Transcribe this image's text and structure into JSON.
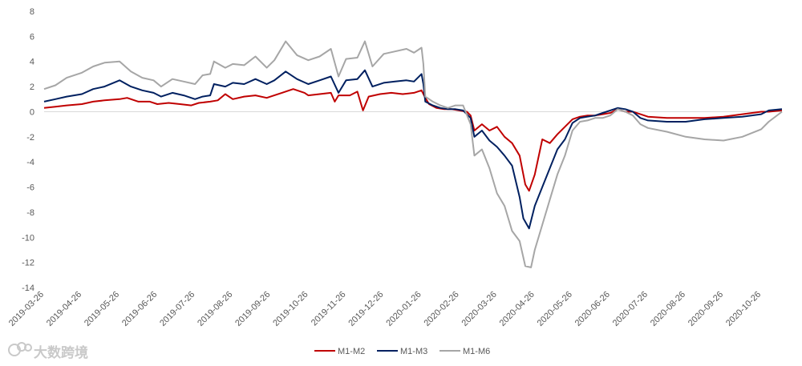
{
  "chart_data": {
    "type": "line",
    "title": "",
    "xlabel": "",
    "ylabel": "",
    "ylim": [
      -14,
      8
    ],
    "yticks": [
      8,
      6,
      4,
      2,
      0,
      -2,
      -4,
      -6,
      -8,
      -10,
      -12,
      -14
    ],
    "x_tick_labels": [
      "2019-03-26",
      "2019-04-26",
      "2019-05-26",
      "2019-06-26",
      "2019-07-26",
      "2019-08-26",
      "2019-09-26",
      "2019-10-26",
      "2019-11-26",
      "2019-12-26",
      "2020-01-26",
      "2020-02-26",
      "2020-03-26",
      "2020-04-26",
      "2020-05-26",
      "2020-06-26",
      "2020-07-26",
      "2020-08-26",
      "2020-09-26",
      "2020-10-26"
    ],
    "x_range": [
      0,
      19.55
    ],
    "grid": false,
    "legend_position": "bottom-center",
    "series": [
      {
        "name": "M1-M2",
        "color": "#c00000",
        "points": [
          [
            0,
            0.3
          ],
          [
            0.3,
            0.4
          ],
          [
            0.6,
            0.5
          ],
          [
            1,
            0.6
          ],
          [
            1.3,
            0.8
          ],
          [
            1.6,
            0.9
          ],
          [
            2,
            1.0
          ],
          [
            2.2,
            1.1
          ],
          [
            2.5,
            0.8
          ],
          [
            2.8,
            0.8
          ],
          [
            3,
            0.6
          ],
          [
            3.3,
            0.7
          ],
          [
            3.6,
            0.6
          ],
          [
            3.9,
            0.5
          ],
          [
            4.1,
            0.7
          ],
          [
            4.4,
            0.8
          ],
          [
            4.6,
            0.9
          ],
          [
            4.8,
            1.4
          ],
          [
            5,
            1.0
          ],
          [
            5.3,
            1.2
          ],
          [
            5.6,
            1.3
          ],
          [
            5.9,
            1.1
          ],
          [
            6,
            1.2
          ],
          [
            6.3,
            1.5
          ],
          [
            6.6,
            1.8
          ],
          [
            6.9,
            1.5
          ],
          [
            7,
            1.3
          ],
          [
            7.3,
            1.4
          ],
          [
            7.6,
            1.5
          ],
          [
            7.7,
            0.8
          ],
          [
            7.8,
            1.3
          ],
          [
            8.1,
            1.3
          ],
          [
            8.3,
            1.6
          ],
          [
            8.45,
            0.1
          ],
          [
            8.6,
            1.2
          ],
          [
            8.9,
            1.4
          ],
          [
            9.2,
            1.5
          ],
          [
            9.5,
            1.4
          ],
          [
            9.8,
            1.5
          ],
          [
            10,
            1.7
          ],
          [
            10.1,
            1.1
          ],
          [
            10.2,
            0.6
          ],
          [
            10.4,
            0.3
          ],
          [
            10.6,
            0.2
          ],
          [
            10.8,
            0.2
          ],
          [
            11,
            0.1
          ],
          [
            11.2,
            0.0
          ],
          [
            11.3,
            -0.3
          ],
          [
            11.4,
            -1.5
          ],
          [
            11.6,
            -1.0
          ],
          [
            11.8,
            -1.5
          ],
          [
            12,
            -1.2
          ],
          [
            12.2,
            -2.0
          ],
          [
            12.4,
            -2.5
          ],
          [
            12.6,
            -3.5
          ],
          [
            12.75,
            -5.8
          ],
          [
            12.85,
            -6.3
          ],
          [
            13,
            -5.0
          ],
          [
            13.2,
            -2.2
          ],
          [
            13.4,
            -2.5
          ],
          [
            13.6,
            -1.8
          ],
          [
            13.8,
            -1.2
          ],
          [
            14,
            -0.6
          ],
          [
            14.2,
            -0.4
          ],
          [
            14.4,
            -0.3
          ],
          [
            14.6,
            -0.3
          ],
          [
            14.8,
            -0.2
          ],
          [
            15,
            -0.1
          ],
          [
            15.2,
            0.2
          ],
          [
            15.4,
            0.0
          ],
          [
            15.6,
            0.0
          ],
          [
            15.8,
            -0.2
          ],
          [
            16,
            -0.4
          ],
          [
            16.5,
            -0.5
          ],
          [
            17,
            -0.5
          ],
          [
            17.5,
            -0.5
          ],
          [
            18,
            -0.4
          ],
          [
            18.5,
            -0.2
          ],
          [
            19,
            0.0
          ],
          [
            19.2,
            0.0
          ],
          [
            19.55,
            0.1
          ]
        ]
      },
      {
        "name": "M1-M3",
        "color": "#002060",
        "points": [
          [
            0,
            0.8
          ],
          [
            0.3,
            1.0
          ],
          [
            0.6,
            1.2
          ],
          [
            1,
            1.4
          ],
          [
            1.3,
            1.8
          ],
          [
            1.6,
            2.0
          ],
          [
            2,
            2.5
          ],
          [
            2.3,
            2.0
          ],
          [
            2.6,
            1.7
          ],
          [
            2.9,
            1.5
          ],
          [
            3.1,
            1.2
          ],
          [
            3.4,
            1.5
          ],
          [
            3.7,
            1.3
          ],
          [
            4,
            1.0
          ],
          [
            4.2,
            1.2
          ],
          [
            4.4,
            1.3
          ],
          [
            4.5,
            2.2
          ],
          [
            4.8,
            2.0
          ],
          [
            5,
            2.3
          ],
          [
            5.3,
            2.2
          ],
          [
            5.6,
            2.6
          ],
          [
            5.9,
            2.2
          ],
          [
            6.1,
            2.5
          ],
          [
            6.4,
            3.2
          ],
          [
            6.7,
            2.6
          ],
          [
            7,
            2.2
          ],
          [
            7.3,
            2.5
          ],
          [
            7.6,
            2.8
          ],
          [
            7.8,
            1.5
          ],
          [
            8,
            2.5
          ],
          [
            8.3,
            2.6
          ],
          [
            8.5,
            3.3
          ],
          [
            8.7,
            2.0
          ],
          [
            9,
            2.3
          ],
          [
            9.3,
            2.4
          ],
          [
            9.6,
            2.5
          ],
          [
            9.8,
            2.4
          ],
          [
            10,
            3.0
          ],
          [
            10.05,
            2.2
          ],
          [
            10.1,
            0.8
          ],
          [
            10.3,
            0.5
          ],
          [
            10.5,
            0.3
          ],
          [
            10.7,
            0.2
          ],
          [
            10.9,
            0.2
          ],
          [
            11.1,
            0.1
          ],
          [
            11.3,
            -0.5
          ],
          [
            11.4,
            -2.0
          ],
          [
            11.6,
            -1.5
          ],
          [
            11.8,
            -2.3
          ],
          [
            12,
            -2.8
          ],
          [
            12.2,
            -3.5
          ],
          [
            12.4,
            -4.3
          ],
          [
            12.6,
            -6.8
          ],
          [
            12.7,
            -8.5
          ],
          [
            12.85,
            -9.3
          ],
          [
            13,
            -7.5
          ],
          [
            13.2,
            -6.0
          ],
          [
            13.4,
            -4.5
          ],
          [
            13.6,
            -3.0
          ],
          [
            13.8,
            -2.2
          ],
          [
            14,
            -0.9
          ],
          [
            14.2,
            -0.5
          ],
          [
            14.4,
            -0.4
          ],
          [
            14.6,
            -0.3
          ],
          [
            14.8,
            -0.1
          ],
          [
            15,
            0.1
          ],
          [
            15.2,
            0.3
          ],
          [
            15.4,
            0.2
          ],
          [
            15.6,
            0.0
          ],
          [
            15.8,
            -0.5
          ],
          [
            16,
            -0.7
          ],
          [
            16.5,
            -0.8
          ],
          [
            17,
            -0.8
          ],
          [
            17.5,
            -0.6
          ],
          [
            18,
            -0.5
          ],
          [
            18.5,
            -0.4
          ],
          [
            19,
            -0.2
          ],
          [
            19.2,
            0.1
          ],
          [
            19.55,
            0.2
          ]
        ]
      },
      {
        "name": "M1-M6",
        "color": "#a6a6a6",
        "points": [
          [
            0,
            1.8
          ],
          [
            0.3,
            2.1
          ],
          [
            0.6,
            2.7
          ],
          [
            1,
            3.1
          ],
          [
            1.3,
            3.6
          ],
          [
            1.6,
            3.9
          ],
          [
            2,
            4.0
          ],
          [
            2.3,
            3.2
          ],
          [
            2.6,
            2.7
          ],
          [
            2.9,
            2.5
          ],
          [
            3.1,
            2.0
          ],
          [
            3.4,
            2.6
          ],
          [
            3.7,
            2.4
          ],
          [
            4,
            2.2
          ],
          [
            4.2,
            2.9
          ],
          [
            4.4,
            3.0
          ],
          [
            4.5,
            4.0
          ],
          [
            4.8,
            3.5
          ],
          [
            5,
            3.8
          ],
          [
            5.3,
            3.7
          ],
          [
            5.6,
            4.4
          ],
          [
            5.9,
            3.5
          ],
          [
            6.1,
            4.1
          ],
          [
            6.4,
            5.6
          ],
          [
            6.7,
            4.5
          ],
          [
            7,
            4.1
          ],
          [
            7.3,
            4.4
          ],
          [
            7.6,
            5.0
          ],
          [
            7.8,
            2.8
          ],
          [
            8,
            4.2
          ],
          [
            8.3,
            4.3
          ],
          [
            8.5,
            5.6
          ],
          [
            8.7,
            3.6
          ],
          [
            9,
            4.6
          ],
          [
            9.3,
            4.8
          ],
          [
            9.6,
            5.0
          ],
          [
            9.8,
            4.7
          ],
          [
            10,
            5.1
          ],
          [
            10.05,
            3.8
          ],
          [
            10.1,
            1.2
          ],
          [
            10.3,
            0.8
          ],
          [
            10.5,
            0.5
          ],
          [
            10.7,
            0.3
          ],
          [
            10.9,
            0.5
          ],
          [
            11.1,
            0.5
          ],
          [
            11.3,
            -1.0
          ],
          [
            11.4,
            -3.5
          ],
          [
            11.6,
            -3.0
          ],
          [
            11.8,
            -4.5
          ],
          [
            12,
            -6.5
          ],
          [
            12.2,
            -7.5
          ],
          [
            12.4,
            -9.5
          ],
          [
            12.6,
            -10.3
          ],
          [
            12.75,
            -12.3
          ],
          [
            12.9,
            -12.4
          ],
          [
            13,
            -11.0
          ],
          [
            13.2,
            -9.0
          ],
          [
            13.4,
            -7.0
          ],
          [
            13.6,
            -5.0
          ],
          [
            13.8,
            -3.5
          ],
          [
            14,
            -1.5
          ],
          [
            14.2,
            -0.8
          ],
          [
            14.4,
            -0.7
          ],
          [
            14.6,
            -0.5
          ],
          [
            14.8,
            -0.5
          ],
          [
            15,
            -0.3
          ],
          [
            15.2,
            0.2
          ],
          [
            15.4,
            0.0
          ],
          [
            15.6,
            -0.3
          ],
          [
            15.8,
            -1.0
          ],
          [
            16,
            -1.3
          ],
          [
            16.5,
            -1.6
          ],
          [
            17,
            -2.0
          ],
          [
            17.5,
            -2.2
          ],
          [
            18,
            -2.3
          ],
          [
            18.5,
            -2.0
          ],
          [
            19,
            -1.4
          ],
          [
            19.2,
            -0.8
          ],
          [
            19.55,
            0.0
          ]
        ]
      }
    ]
  },
  "watermark": {
    "text": "大数跨境"
  }
}
